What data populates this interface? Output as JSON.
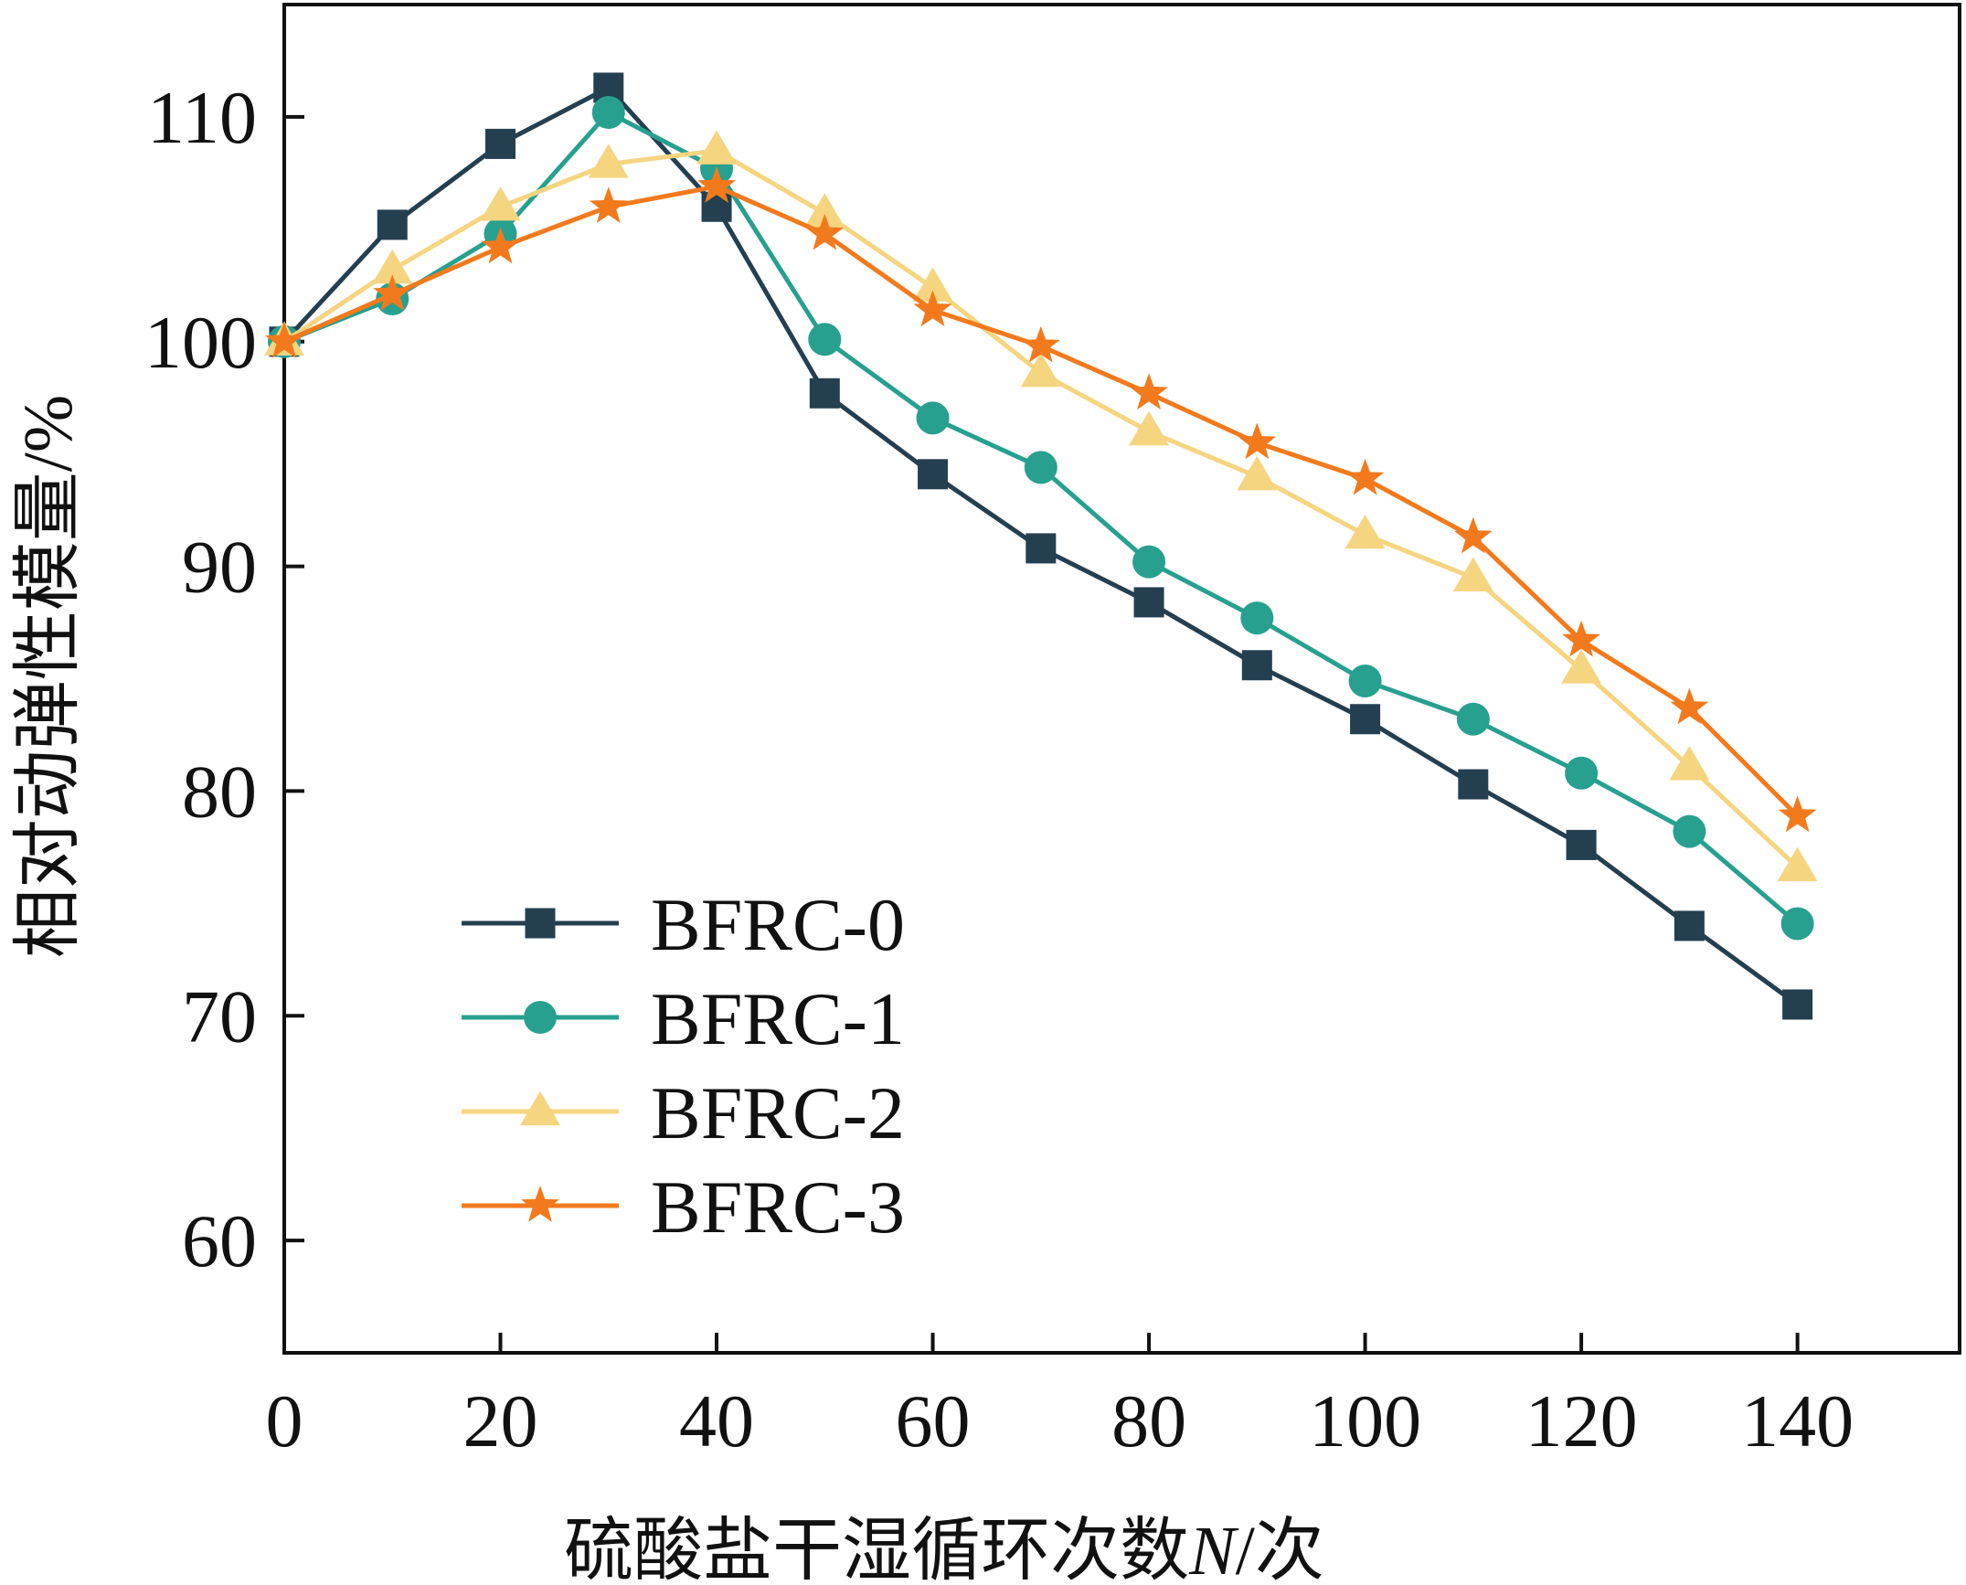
{
  "chart_data": {
    "type": "line",
    "title": "",
    "xlabel": "硫酸盐干湿循环次数N/次",
    "xlabel_parts": [
      "硫酸盐干湿循环次数",
      "N",
      "/次"
    ],
    "ylabel": "相对动弹性模量/%",
    "xlim": [
      0,
      155
    ],
    "ylim": [
      55,
      115
    ],
    "xticks": [
      0,
      20,
      40,
      60,
      80,
      100,
      120,
      140
    ],
    "yticks": [
      60,
      70,
      80,
      90,
      100,
      110
    ],
    "x": [
      0,
      10,
      20,
      30,
      40,
      50,
      60,
      70,
      80,
      90,
      100,
      110,
      120,
      130,
      140
    ],
    "legend_position": "lower-left",
    "grid": false,
    "series": [
      {
        "name": "BFRC-0",
        "marker": "square",
        "color": "#243f50",
        "values": [
          100,
          105.2,
          108.8,
          111.3,
          106.0,
          97.7,
          94.1,
          90.8,
          88.4,
          85.6,
          83.2,
          80.3,
          77.6,
          74.0,
          70.5
        ]
      },
      {
        "name": "BFRC-1",
        "marker": "circle",
        "color": "#27a08f",
        "values": [
          100,
          101.9,
          104.8,
          110.2,
          107.7,
          100.1,
          96.6,
          94.4,
          90.2,
          87.7,
          84.9,
          83.2,
          80.8,
          78.2,
          74.1
        ]
      },
      {
        "name": "BFRC-2",
        "marker": "triangle",
        "color": "#f5d580",
        "values": [
          100,
          103.2,
          106.0,
          107.9,
          108.5,
          105.7,
          102.4,
          98.6,
          96.0,
          94.0,
          91.4,
          89.5,
          85.4,
          81.1,
          76.6
        ]
      },
      {
        "name": "BFRC-3",
        "marker": "star",
        "color": "#f27a1c",
        "values": [
          100,
          102.1,
          104.2,
          106.0,
          106.9,
          104.8,
          101.4,
          99.8,
          97.7,
          95.5,
          93.9,
          91.3,
          86.7,
          83.7,
          78.9
        ]
      }
    ]
  }
}
